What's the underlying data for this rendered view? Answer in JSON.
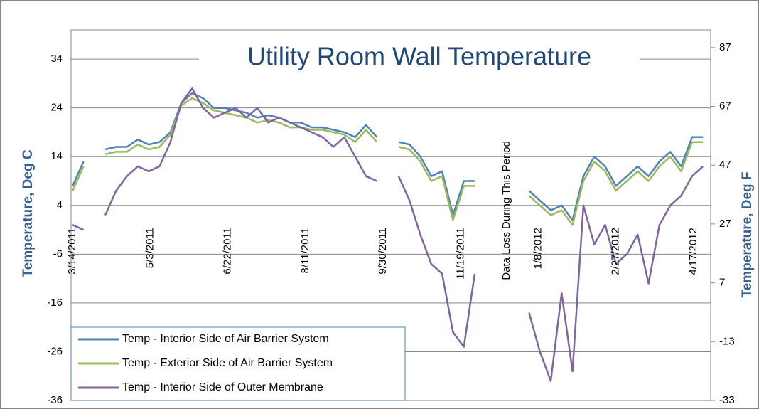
{
  "chart_data": {
    "type": "line",
    "title": "Utility Room Wall Temperature",
    "y_label": "Temperature, Deg C",
    "y2_label": "Temperature, Deg F",
    "annotation": "Data Loss During This Period",
    "x": [
      "3/14/2011",
      "3/21/2011",
      "3/28/2011",
      "4/4/2011",
      "4/11/2011",
      "4/18/2011",
      "4/25/2011",
      "5/2/2011",
      "5/9/2011",
      "5/16/2011",
      "5/23/2011",
      "5/30/2011",
      "6/6/2011",
      "6/13/2011",
      "6/20/2011",
      "6/27/2011",
      "7/4/2011",
      "7/11/2011",
      "7/18/2011",
      "7/25/2011",
      "8/1/2011",
      "8/8/2011",
      "8/15/2011",
      "8/22/2011",
      "8/29/2011",
      "9/5/2011",
      "9/12/2011",
      "9/19/2011",
      "9/26/2011",
      "10/3/2011",
      "10/10/2011",
      "10/17/2011",
      "10/24/2011",
      "10/31/2011",
      "11/7/2011",
      "11/14/2011",
      "11/21/2011",
      "11/28/2011",
      "12/5/2011",
      "12/12/2011",
      "12/19/2011",
      "12/26/2011",
      "1/2/2012",
      "1/9/2012",
      "1/16/2012",
      "1/23/2012",
      "1/30/2012",
      "2/6/2012",
      "2/13/2012",
      "2/20/2012",
      "2/27/2012",
      "3/5/2012",
      "3/12/2012",
      "3/19/2012",
      "3/26/2012",
      "4/2/2012",
      "4/9/2012",
      "4/16/2012",
      "4/23/2012"
    ],
    "xlim": [
      "3/13/2011",
      "4/28/2012"
    ],
    "xticks": [
      "3/14/2011",
      "5/3/2011",
      "6/22/2011",
      "8/11/2011",
      "9/30/2011",
      "11/19/2011",
      "1/8/2012",
      "2/27/2012",
      "4/17/2012"
    ],
    "ylim": [
      -36,
      40
    ],
    "yticks": [
      -36,
      -26,
      -16,
      -6,
      4,
      14,
      24,
      34
    ],
    "y2lim": [
      -33,
      93
    ],
    "y2ticks": [
      -33,
      -13,
      7,
      27,
      47,
      67,
      87
    ],
    "grid": true,
    "legend": "lower left",
    "series": [
      {
        "name": "Temp - Interior Side of Air Barrier System",
        "color": "#4f81bd",
        "values": [
          8,
          13,
          null,
          15.5,
          16,
          16,
          17.5,
          16.5,
          17,
          19,
          25,
          27,
          26,
          24,
          24,
          23.5,
          23,
          22,
          22.5,
          22,
          21,
          21,
          20,
          20,
          19.5,
          19,
          18,
          20.5,
          18,
          null,
          17,
          16.5,
          14,
          10,
          11,
          2,
          9,
          9,
          null,
          null,
          null,
          null,
          7,
          5,
          3,
          4,
          1,
          10,
          14,
          12,
          8,
          10,
          12,
          10,
          13,
          15,
          12,
          18,
          18
        ]
      },
      {
        "name": "Temp - Exterior Side of Air Barrier System",
        "color": "#9bbb59",
        "values": [
          7,
          12,
          null,
          14.5,
          15,
          15,
          16.5,
          15.5,
          16,
          18.5,
          24.5,
          26,
          25,
          23.5,
          23,
          22.5,
          22,
          21,
          21.5,
          21,
          20,
          20,
          19.5,
          19.5,
          19,
          18.5,
          17,
          19.5,
          17,
          null,
          16,
          15.5,
          13,
          9,
          10,
          1,
          8,
          8,
          null,
          null,
          null,
          null,
          6,
          4,
          2,
          3,
          0,
          9,
          13,
          11,
          7,
          9,
          11,
          9,
          12,
          14,
          11,
          17,
          17
        ]
      },
      {
        "name": "Temp - Interior Side of Outer Membrane",
        "color": "#8064a2",
        "values": [
          0,
          -1,
          null,
          2,
          7,
          10,
          12,
          11,
          12,
          17,
          25,
          28,
          24,
          22,
          23,
          24,
          22,
          24,
          21,
          22,
          21,
          20,
          19,
          18,
          16,
          18,
          14,
          10,
          9,
          null,
          10,
          5,
          -2,
          -8,
          -10,
          -22,
          -25,
          -10,
          null,
          null,
          null,
          null,
          -18,
          -26,
          -32,
          -14,
          -30,
          4,
          -4,
          0,
          -8,
          -6,
          -2,
          -12,
          0,
          4,
          6,
          10,
          12
        ]
      }
    ]
  }
}
